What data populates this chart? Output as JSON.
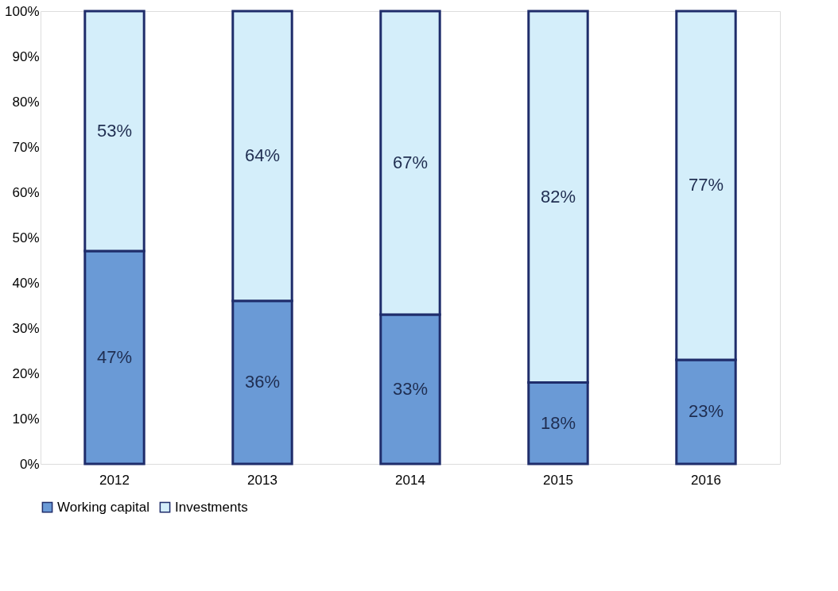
{
  "chart_data": {
    "type": "bar",
    "stacked": true,
    "categories": [
      "2012",
      "2013",
      "2014",
      "2015",
      "2016"
    ],
    "series": [
      {
        "name": "Working capital",
        "color": "#6a9ad6",
        "values": [
          47,
          36,
          33,
          18,
          23
        ],
        "value_labels": [
          "47%",
          "36%",
          "33%",
          "18%",
          "23%"
        ]
      },
      {
        "name": "Investments",
        "color": "#d4eefa",
        "values": [
          53,
          64,
          67,
          82,
          77
        ],
        "value_labels": [
          "53%",
          "64%",
          "67%",
          "82%",
          "77%"
        ]
      }
    ],
    "ylim": [
      0,
      100
    ],
    "yticks": [
      {
        "value": 0,
        "label": "0%"
      },
      {
        "value": 10,
        "label": "10%"
      },
      {
        "value": 20,
        "label": "20%"
      },
      {
        "value": 30,
        "label": "30%"
      },
      {
        "value": 40,
        "label": "40%"
      },
      {
        "value": 50,
        "label": "50%"
      },
      {
        "value": 60,
        "label": "60%"
      },
      {
        "value": 70,
        "label": "70%"
      },
      {
        "value": 80,
        "label": "80%"
      },
      {
        "value": 90,
        "label": "90%"
      },
      {
        "value": 100,
        "label": "100%"
      }
    ],
    "grid": false,
    "legend": "bottom"
  }
}
